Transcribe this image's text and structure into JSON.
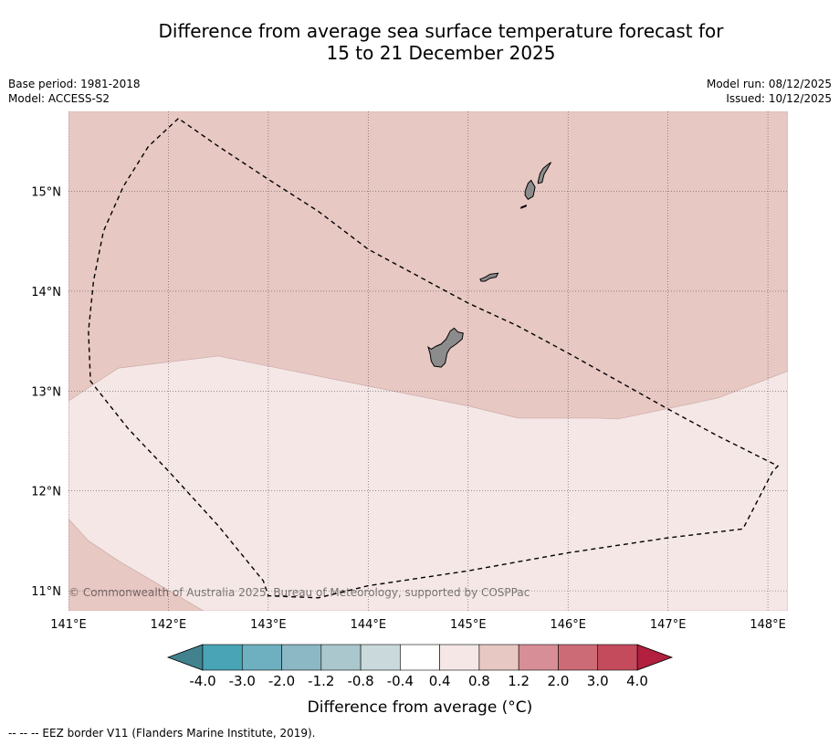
{
  "title_line1": "Difference from average sea surface temperature forecast for",
  "title_line2": "15 to 21 December 2025",
  "base_period": "Base period: 1981-2018",
  "model": "Model: ACCESS-S2",
  "model_run": "Model run: 08/12/2025",
  "issued": "Issued: 10/12/2025",
  "copyright": "© Commonwealth of Australia 2025, Bureau of Meteorology, supported by COSPPac",
  "footer_note": "--  --  -- EEZ border V11 (Flanders Marine Institute, 2019).",
  "chart_data": {
    "type": "map",
    "lon_range": [
      141,
      148.2
    ],
    "lat_range": [
      10.8,
      15.8
    ],
    "lon_ticks": [
      141,
      142,
      143,
      144,
      145,
      146,
      147,
      148
    ],
    "lon_tick_labels": [
      "141°E",
      "142°E",
      "143°E",
      "144°E",
      "145°E",
      "146°E",
      "147°E",
      "148°E"
    ],
    "lat_ticks": [
      11,
      12,
      13,
      14,
      15
    ],
    "lat_tick_labels": [
      "11°N",
      "12°N",
      "13°N",
      "14°N",
      "15°N"
    ],
    "regions": [
      {
        "name": "anomaly-0.8-to-1.2-region",
        "value_range": "0.8 to 1.2",
        "color": "#e8c8c3",
        "coords": [
          [
            141,
            15.8
          ],
          [
            148.2,
            15.8
          ],
          [
            148.2,
            13.2
          ],
          [
            147.5,
            12.93
          ],
          [
            146.5,
            12.72
          ],
          [
            146.3,
            12.73
          ],
          [
            145.5,
            12.73
          ],
          [
            145,
            12.85
          ],
          [
            144,
            13.05
          ],
          [
            143,
            13.25
          ],
          [
            142.5,
            13.35
          ],
          [
            141.5,
            13.23
          ],
          [
            141,
            12.9
          ]
        ]
      },
      {
        "name": "anomaly-0.4-to-0.8-region",
        "value_range": "0.4 to 0.8",
        "color": "#f4e7e6",
        "coords": [
          [
            141,
            12.9
          ],
          [
            141.5,
            13.23
          ],
          [
            142.5,
            13.35
          ],
          [
            143,
            13.25
          ],
          [
            144,
            13.05
          ],
          [
            145,
            12.85
          ],
          [
            145.5,
            12.73
          ],
          [
            146.3,
            12.73
          ],
          [
            146.5,
            12.72
          ],
          [
            147.5,
            12.93
          ],
          [
            148.2,
            13.2
          ],
          [
            148.2,
            10.8
          ],
          [
            142.35,
            10.8
          ],
          [
            141.5,
            11.3
          ],
          [
            141.2,
            11.5
          ],
          [
            141,
            11.72
          ]
        ]
      },
      {
        "name": "anomaly-0.8-to-1.2-corner-region",
        "value_range": "0.8 to 1.2",
        "color": "#e8c8c3",
        "coords": [
          [
            141,
            11.72
          ],
          [
            141.2,
            11.5
          ],
          [
            141.5,
            11.3
          ],
          [
            142.35,
            10.8
          ],
          [
            141,
            10.8
          ]
        ]
      }
    ],
    "eez_border": [
      [
        142.1,
        15.73
      ],
      [
        141.8,
        15.45
      ],
      [
        141.55,
        15.05
      ],
      [
        141.35,
        14.6
      ],
      [
        141.25,
        14.1
      ],
      [
        141.2,
        13.6
      ],
      [
        141.22,
        13.1
      ],
      [
        141.6,
        12.62
      ],
      [
        142,
        12.2
      ],
      [
        142.5,
        11.65
      ],
      [
        142.95,
        11.1
      ],
      [
        143,
        10.95
      ],
      [
        143.5,
        10.93
      ],
      [
        144,
        11.05
      ],
      [
        145,
        11.2
      ],
      [
        146,
        11.38
      ],
      [
        147,
        11.53
      ],
      [
        147.75,
        11.62
      ],
      [
        148.05,
        12.2
      ],
      [
        148.1,
        12.25
      ],
      [
        147.5,
        12.55
      ],
      [
        147,
        12.82
      ],
      [
        146,
        13.38
      ],
      [
        145.5,
        13.65
      ],
      [
        145,
        13.88
      ],
      [
        144.5,
        14.15
      ],
      [
        144,
        14.42
      ],
      [
        143.5,
        14.8
      ],
      [
        143,
        15.12
      ],
      [
        142.5,
        15.45
      ],
      [
        142.1,
        15.73
      ]
    ],
    "islands": [
      {
        "name": "guam-island",
        "coords": [
          [
            144.63,
            13.42
          ],
          [
            144.68,
            13.45
          ],
          [
            144.73,
            13.47
          ],
          [
            144.78,
            13.52
          ],
          [
            144.82,
            13.6
          ],
          [
            144.86,
            13.63
          ],
          [
            144.9,
            13.59
          ],
          [
            144.95,
            13.58
          ],
          [
            144.94,
            13.52
          ],
          [
            144.88,
            13.47
          ],
          [
            144.82,
            13.43
          ],
          [
            144.79,
            13.38
          ],
          [
            144.77,
            13.28
          ],
          [
            144.73,
            13.24
          ],
          [
            144.66,
            13.25
          ],
          [
            144.63,
            13.3
          ],
          [
            144.62,
            13.37
          ],
          [
            144.6,
            13.44
          ]
        ]
      },
      {
        "name": "rota-island",
        "coords": [
          [
            145.12,
            14.12
          ],
          [
            145.17,
            14.14
          ],
          [
            145.22,
            14.17
          ],
          [
            145.3,
            14.18
          ],
          [
            145.28,
            14.14
          ],
          [
            145.22,
            14.13
          ],
          [
            145.17,
            14.1
          ],
          [
            145.13,
            14.1
          ]
        ]
      },
      {
        "name": "tinian-island",
        "coords": [
          [
            145.57,
            15.0
          ],
          [
            145.6,
            15.08
          ],
          [
            145.63,
            15.11
          ],
          [
            145.67,
            15.04
          ],
          [
            145.65,
            14.95
          ],
          [
            145.6,
            14.92
          ],
          [
            145.57,
            14.96
          ]
        ]
      },
      {
        "name": "saipan-island",
        "coords": [
          [
            145.7,
            15.1
          ],
          [
            145.72,
            15.18
          ],
          [
            145.75,
            15.23
          ],
          [
            145.8,
            15.27
          ],
          [
            145.83,
            15.29
          ],
          [
            145.79,
            15.22
          ],
          [
            145.76,
            15.17
          ],
          [
            145.74,
            15.09
          ],
          [
            145.7,
            15.08
          ]
        ]
      },
      {
        "name": "aguijan-island",
        "coords": [
          [
            145.53,
            14.84
          ],
          [
            145.58,
            14.86
          ],
          [
            145.58,
            14.85
          ],
          [
            145.53,
            14.83
          ]
        ]
      }
    ],
    "colorbar": {
      "label": "Difference from average (°C)",
      "tick_labels": [
        "-4.0",
        "-3.0",
        "-2.0",
        "-1.2",
        "-0.8",
        "-0.4",
        "0.4",
        "0.8",
        "1.2",
        "2.0",
        "3.0",
        "4.0"
      ],
      "bins": [
        {
          "range": "-4.0 to -3.0",
          "color": "#49a4b5"
        },
        {
          "range": "-3.0 to -2.0",
          "color": "#6eb0bf"
        },
        {
          "range": "-2.0 to -1.2",
          "color": "#8bb8c4"
        },
        {
          "range": "-1.2 to -0.8",
          "color": "#a9c7cd"
        },
        {
          "range": "-0.8 to -0.4",
          "color": "#cad9db"
        },
        {
          "range": "-0.4 to 0.4",
          "color": "#ffffff"
        },
        {
          "range": "0.4 to 0.8",
          "color": "#f4e7e6"
        },
        {
          "range": "0.8 to 1.2",
          "color": "#e8c8c3"
        },
        {
          "range": "1.2 to 2.0",
          "color": "#d88e96"
        },
        {
          "range": "2.0 to 3.0",
          "color": "#cc6b76"
        },
        {
          "range": "3.0 to 4.0",
          "color": "#c44b5b"
        }
      ],
      "low_extend_color": "#42828f",
      "high_extend_color": "#b21f3f"
    }
  }
}
